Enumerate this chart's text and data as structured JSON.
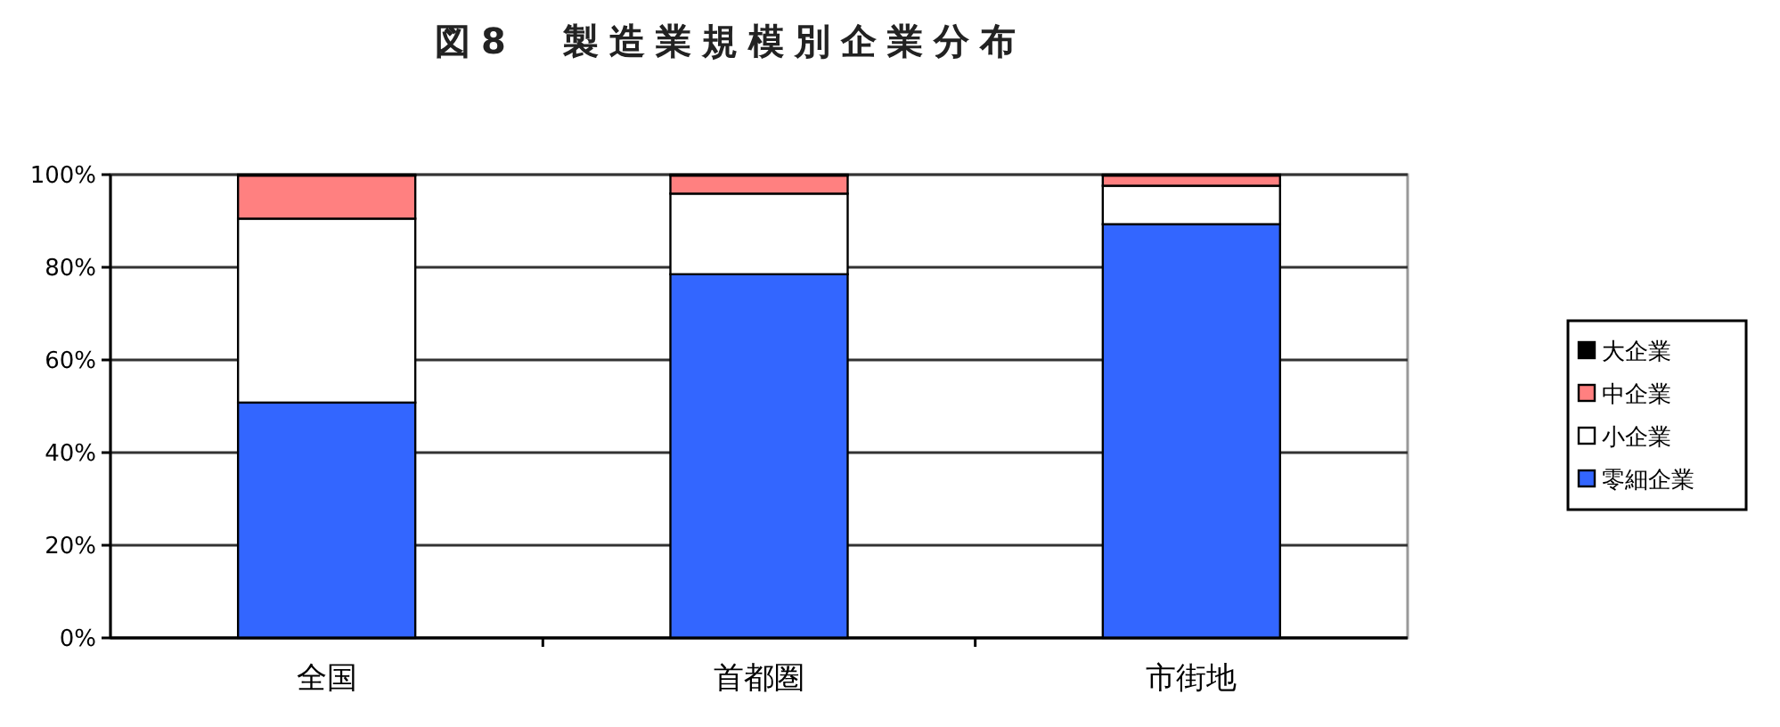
{
  "chart_data": {
    "type": "bar",
    "title": "図8　製造業規模別企業分布",
    "categories": [
      "全国",
      "首都圏",
      "市街地"
    ],
    "series": [
      {
        "name": "零細企業",
        "color": "#3366ff",
        "values": [
          50.8,
          78.5,
          89.3
        ]
      },
      {
        "name": "小企業",
        "color": "#ffffff",
        "values": [
          39.7,
          17.4,
          8.3
        ]
      },
      {
        "name": "中企業",
        "color": "#ff8080",
        "values": [
          9.3,
          3.9,
          2.2
        ]
      },
      {
        "name": "大企業",
        "color": "#000000",
        "values": [
          0.2,
          0.2,
          0.2
        ]
      }
    ],
    "stacked": true,
    "ylim": [
      0,
      100
    ],
    "yticks": [
      {
        "value": 0,
        "label": "0%"
      },
      {
        "value": 20,
        "label": "20%"
      },
      {
        "value": 40,
        "label": "40%"
      },
      {
        "value": 60,
        "label": "60%"
      },
      {
        "value": 80,
        "label": "80%"
      },
      {
        "value": 100,
        "label": "100%"
      }
    ],
    "grid": "y",
    "legend": "right"
  }
}
